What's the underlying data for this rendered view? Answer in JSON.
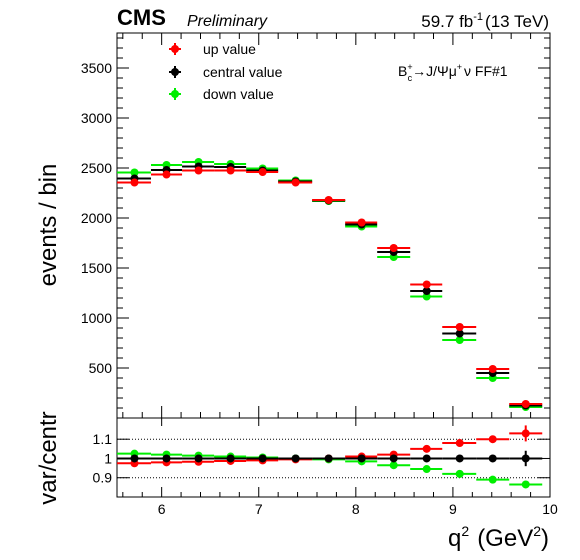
{
  "header": {
    "experiment": "CMS",
    "status": "Preliminary",
    "luminosity": "59.7 fb",
    "lumi_exponent": "-1",
    "energy": "(13 TeV)"
  },
  "chart_data": [
    {
      "type": "scatter",
      "panel": "main",
      "ylabel": "events / bin",
      "xlim": [
        5.54,
        10
      ],
      "ylim": [
        0,
        3850
      ],
      "y_ticks": [
        500,
        1000,
        1500,
        2000,
        2500,
        3000,
        3500
      ],
      "annotation": {
        "base": "B",
        "sup": "+",
        "sub": "c",
        "rest": "→J/Ψμ",
        "sup2": "+",
        "tail": "ν FF#1"
      },
      "legend_position": "top-left",
      "x_bin_edges": [
        5.54,
        5.89,
        6.21,
        6.54,
        6.87,
        7.2,
        7.55,
        7.89,
        8.22,
        8.56,
        8.89,
        9.24,
        9.58,
        9.92
      ],
      "x": [
        5.72,
        6.05,
        6.38,
        6.71,
        7.04,
        7.38,
        7.72,
        8.06,
        8.39,
        8.73,
        9.07,
        9.41,
        9.75
      ],
      "series": [
        {
          "name": "up value",
          "color": "#ff0000",
          "values": [
            2355,
            2435,
            2475,
            2475,
            2460,
            2355,
            2180,
            1955,
            1700,
            1335,
            910,
            490,
            140
          ]
        },
        {
          "name": "central value",
          "color": "#000000",
          "values": [
            2395,
            2480,
            2515,
            2510,
            2475,
            2365,
            2175,
            1935,
            1660,
            1270,
            845,
            450,
            125
          ]
        },
        {
          "name": "down value",
          "color": "#00ee00",
          "values": [
            2455,
            2530,
            2560,
            2540,
            2495,
            2375,
            2170,
            1915,
            1610,
            1215,
            780,
            400,
            110
          ]
        }
      ]
    },
    {
      "type": "scatter",
      "panel": "ratio",
      "xlabel": "q",
      "xlabel_sup": "2",
      "xlabel_unit": "(GeV",
      "xlabel_unit_sup": "2",
      "xlabel_close": ")",
      "ylabel": "var/centr",
      "xlim": [
        5.54,
        10
      ],
      "ylim": [
        0.8,
        1.21
      ],
      "x_ticks": [
        6,
        7,
        8,
        9,
        10
      ],
      "y_ticks": [
        0.9,
        1,
        1.1
      ],
      "reference_lines": [
        0.9,
        1.1
      ],
      "x_bin_edges": [
        5.54,
        5.89,
        6.21,
        6.54,
        6.87,
        7.2,
        7.55,
        7.89,
        8.22,
        8.56,
        8.89,
        9.24,
        9.58,
        9.92
      ],
      "x": [
        5.72,
        6.05,
        6.38,
        6.71,
        7.04,
        7.38,
        7.72,
        8.06,
        8.39,
        8.73,
        9.07,
        9.41,
        9.75
      ],
      "series": [
        {
          "name": "up value",
          "color": "#ff0000",
          "values": [
            0.975,
            0.98,
            0.983,
            0.987,
            0.99,
            0.995,
            1.0,
            1.01,
            1.02,
            1.05,
            1.08,
            1.1,
            1.13
          ]
        },
        {
          "name": "central value",
          "color": "#000000",
          "values": [
            1,
            1,
            1,
            1,
            1,
            1,
            1,
            1,
            1,
            1,
            1,
            1,
            1
          ]
        },
        {
          "name": "down value",
          "color": "#00ee00",
          "values": [
            1.025,
            1.02,
            1.015,
            1.01,
            1.005,
            1.0,
            0.995,
            0.985,
            0.965,
            0.945,
            0.92,
            0.89,
            0.865
          ]
        }
      ]
    }
  ]
}
